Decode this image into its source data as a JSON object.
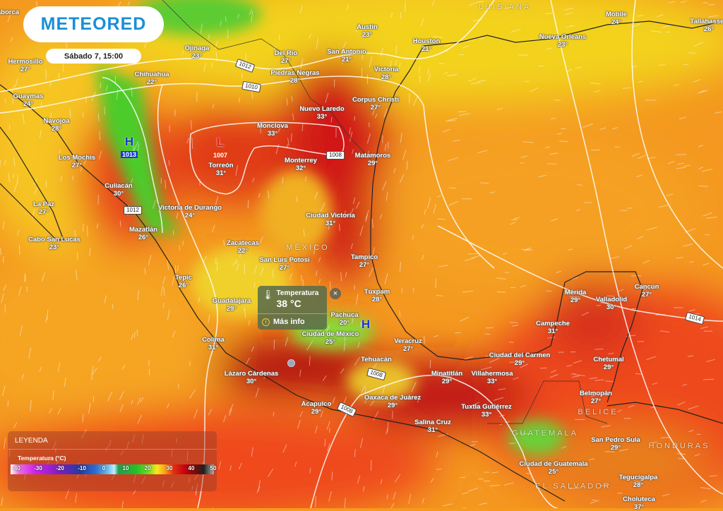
{
  "brand": {
    "logo_text": "METEORED"
  },
  "datetime": "Sábado 7, 15:00",
  "popup": {
    "label": "Temperatura",
    "value": "38 °C",
    "more_info": "Más info",
    "close": "×",
    "icon": "thermometer-icon",
    "info_icon": "info-icon"
  },
  "legend": {
    "title": "LEYENDA",
    "subtitle": "Temperatura (°C)",
    "ticks": [
      "-40",
      "-30",
      "-20",
      "-10",
      "0",
      "10",
      "20",
      "30",
      "40",
      "50"
    ]
  },
  "cities": [
    {
      "name": "Hermosillo",
      "temp": "27°"
    },
    {
      "name": "Ojinaga",
      "temp": "23°"
    },
    {
      "name": "Chihuahua",
      "temp": "22°"
    },
    {
      "name": "Guaymas",
      "temp": "24°"
    },
    {
      "name": "Navojoa",
      "temp": "28°"
    },
    {
      "name": "Los Mochis",
      "temp": "27°"
    },
    {
      "name": "Culiacán",
      "temp": "30°"
    },
    {
      "name": "La Paz",
      "temp": "27°"
    },
    {
      "name": "Victoria de Durango",
      "temp": "24°"
    },
    {
      "name": "Mazatlán",
      "temp": "26°"
    },
    {
      "name": "Cabo San Lucas",
      "temp": "23°"
    },
    {
      "name": "Torreón",
      "temp": "31°"
    },
    {
      "name": "Austin",
      "temp": "23°"
    },
    {
      "name": "San Antonio",
      "temp": "21°"
    },
    {
      "name": "Houston",
      "temp": "21°"
    },
    {
      "name": "Del Río",
      "temp": "27°"
    },
    {
      "name": "Piedras Negras",
      "temp": "28°"
    },
    {
      "name": "Victoria",
      "temp": "28°"
    },
    {
      "name": "Corpus Christi",
      "temp": "27°"
    },
    {
      "name": "Nuevo Laredo",
      "temp": "33°"
    },
    {
      "name": "Monclova",
      "temp": "33°"
    },
    {
      "name": "Monterrey",
      "temp": "32°"
    },
    {
      "name": "Matamoros",
      "temp": "29°"
    },
    {
      "name": "Ciudad Victoria",
      "temp": "31°"
    },
    {
      "name": "Zacatecas",
      "temp": "22°"
    },
    {
      "name": "San Luis Potosí",
      "temp": "27°"
    },
    {
      "name": "Tampico",
      "temp": "27°"
    },
    {
      "name": "Tepic",
      "temp": "26°"
    },
    {
      "name": "Guadalajara",
      "temp": "29°"
    },
    {
      "name": "Túxpam",
      "temp": "28°"
    },
    {
      "name": "Pachuca",
      "temp": "20°"
    },
    {
      "name": "Ciudad de México",
      "temp": "25°"
    },
    {
      "name": "Colima",
      "temp": "31°"
    },
    {
      "name": "Veracruz",
      "temp": "27°"
    },
    {
      "name": "Tehuacán",
      "temp": ""
    },
    {
      "name": "Lázaro Cárdenas",
      "temp": "30°"
    },
    {
      "name": "Acapulco",
      "temp": "29°"
    },
    {
      "name": "Oaxaca de Juárez",
      "temp": "29°"
    },
    {
      "name": "Minatitlán",
      "temp": "29°"
    },
    {
      "name": "Villahermosa",
      "temp": "33°"
    },
    {
      "name": "Salina Cruz",
      "temp": "31°"
    },
    {
      "name": "Tuxtla Gutiérrez",
      "temp": "33°"
    },
    {
      "name": "Ciudad del Carmen",
      "temp": "29°"
    },
    {
      "name": "Campeche",
      "temp": "31°"
    },
    {
      "name": "Mérida",
      "temp": "29°"
    },
    {
      "name": "Valladolid",
      "temp": "30°"
    },
    {
      "name": "Cancún",
      "temp": "27°"
    },
    {
      "name": "Chetumal",
      "temp": "29°"
    },
    {
      "name": "Belmopán",
      "temp": "27°"
    },
    {
      "name": "San Pedro Sula",
      "temp": "29°"
    },
    {
      "name": "Ciudad de Guatemala",
      "temp": "25°"
    },
    {
      "name": "Tegucigalpa",
      "temp": "28°"
    },
    {
      "name": "Choluteca",
      "temp": "37°"
    },
    {
      "name": "Nueva Orleans",
      "temp": "23°"
    },
    {
      "name": "Mobile",
      "temp": "24°"
    },
    {
      "name": "Tallahassee",
      "temp": "26°"
    },
    {
      "name": "Caborca",
      "temp": ""
    }
  ],
  "countries": [
    "MÉXICO",
    "GUATEMALA",
    "HONDURAS",
    "EL SALVADOR",
    "BELICE",
    "LUISIANA"
  ],
  "pressure_labels": [
    "1012",
    "1010",
    "1008",
    "1012",
    "1008",
    "1008",
    "1014"
  ],
  "pressure_centers": [
    {
      "type": "H",
      "value": "1013",
      "color": "#1a3ad0"
    },
    {
      "type": "L",
      "value": "1007",
      "color": "#e02020"
    },
    {
      "type": "H",
      "value": "",
      "color": "#1a3ad0"
    }
  ]
}
